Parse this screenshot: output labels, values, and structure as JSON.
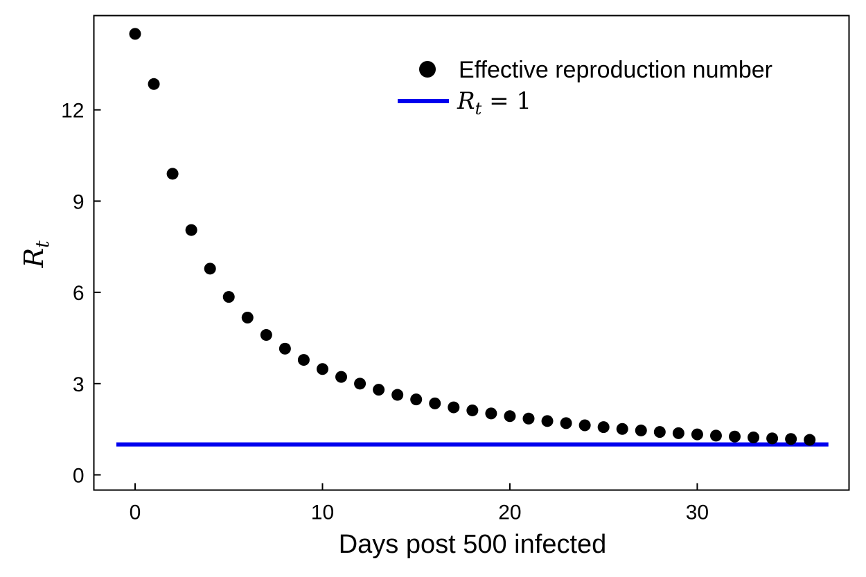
{
  "chart_data": {
    "type": "scatter",
    "xlabel": "Days post 500 infected",
    "ylabel": {
      "symbol": "R",
      "subscript": "t"
    },
    "xlim": [
      -2.2,
      38.1
    ],
    "ylim": [
      -0.5,
      15.1
    ],
    "xticks": [
      0,
      10,
      20,
      30
    ],
    "yticks": [
      0,
      3,
      6,
      9,
      12
    ],
    "grid": false,
    "legend_position": "top-right",
    "series": [
      {
        "name": "Effective reproduction number",
        "kind": "points",
        "color": "#000000",
        "x": [
          0,
          1,
          2,
          3,
          4,
          5,
          6,
          7,
          8,
          9,
          10,
          11,
          12,
          13,
          14,
          15,
          16,
          17,
          18,
          19,
          20,
          21,
          22,
          23,
          24,
          25,
          26,
          27,
          28,
          29,
          30,
          31,
          32,
          33,
          34,
          35,
          36
        ],
        "y": [
          14.5,
          12.85,
          9.9,
          8.05,
          6.78,
          5.85,
          5.17,
          4.6,
          4.15,
          3.78,
          3.48,
          3.22,
          3.0,
          2.8,
          2.63,
          2.48,
          2.35,
          2.22,
          2.12,
          2.02,
          1.93,
          1.85,
          1.77,
          1.7,
          1.63,
          1.57,
          1.51,
          1.46,
          1.41,
          1.37,
          1.33,
          1.29,
          1.26,
          1.23,
          1.2,
          1.18,
          1.15
        ]
      },
      {
        "name": "R_t = 1",
        "legend_label": {
          "symbol": "R",
          "subscript": "t",
          "rest": " = 1"
        },
        "kind": "hline",
        "color": "#0000ee",
        "y": 1,
        "x_range": [
          -1,
          37
        ]
      }
    ]
  }
}
